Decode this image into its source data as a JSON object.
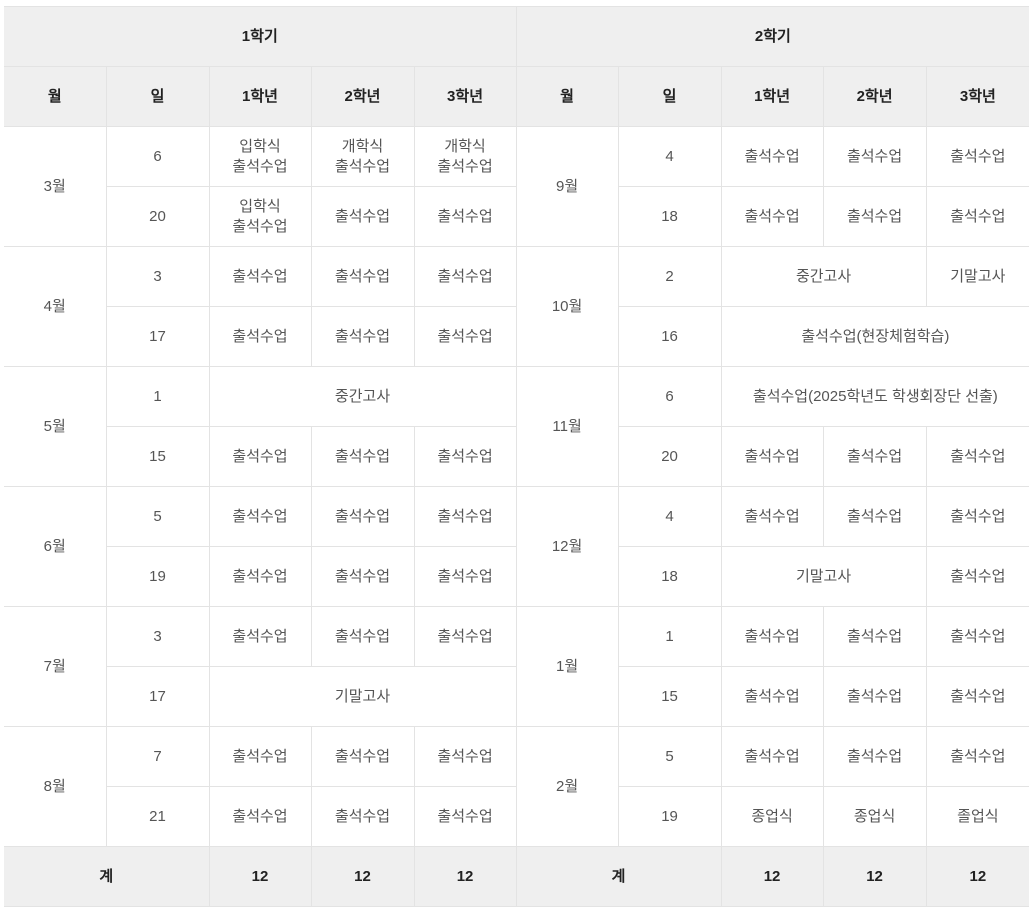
{
  "header": {
    "semester1": "1학기",
    "semester2": "2학기",
    "col_month": "월",
    "col_day": "일",
    "col_grade1": "1학년",
    "col_grade2": "2학년",
    "col_grade3": "3학년"
  },
  "sem1": {
    "months": [
      "3월",
      "4월",
      "5월",
      "6월",
      "7월",
      "8월"
    ],
    "days": [
      "6",
      "20",
      "3",
      "17",
      "1",
      "15",
      "5",
      "19",
      "3",
      "17",
      "7",
      "21"
    ],
    "cells": [
      [
        "입학식\n출석수업",
        "개학식\n출석수업",
        "개학식\n출석수업"
      ],
      [
        "입학식\n출석수업",
        "출석수업",
        "출석수업"
      ],
      [
        "출석수업",
        "출석수업",
        "출석수업"
      ],
      [
        "출석수업",
        "출석수업",
        "출석수업"
      ],
      [
        "중간고사"
      ],
      [
        "출석수업",
        "출석수업",
        "출석수업"
      ],
      [
        "출석수업",
        "출석수업",
        "출석수업"
      ],
      [
        "출석수업",
        "출석수업",
        "출석수업"
      ],
      [
        "출석수업",
        "출석수업",
        "출석수업"
      ],
      [
        "기말고사"
      ],
      [
        "출석수업",
        "출석수업",
        "출석수업"
      ],
      [
        "출석수업",
        "출석수업",
        "출석수업"
      ]
    ]
  },
  "sem2": {
    "months": [
      "9월",
      "10월",
      "11월",
      "12월",
      "1월",
      "2월"
    ],
    "days": [
      "4",
      "18",
      "2",
      "16",
      "6",
      "20",
      "4",
      "18",
      "1",
      "15",
      "5",
      "19"
    ],
    "cells": [
      [
        "출석수업",
        "출석수업",
        "출석수업"
      ],
      [
        "출석수업",
        "출석수업",
        "출석수업"
      ],
      [
        "중간고사",
        "기말고사"
      ],
      [
        "출석수업(현장체험학습)"
      ],
      [
        "출석수업(2025학년도 학생회장단 선출)"
      ],
      [
        "출석수업",
        "출석수업",
        "출석수업"
      ],
      [
        "출석수업",
        "출석수업",
        "출석수업"
      ],
      [
        "기말고사",
        "출석수업"
      ],
      [
        "출석수업",
        "출석수업",
        "출석수업"
      ],
      [
        "출석수업",
        "출석수업",
        "출석수업"
      ],
      [
        "출석수업",
        "출석수업",
        "출석수업"
      ],
      [
        "종업식",
        "종업식",
        "졸업식"
      ]
    ]
  },
  "footer": {
    "label1": "계",
    "totals1": [
      "12",
      "12",
      "12"
    ],
    "label2": "계",
    "totals2": [
      "12",
      "12",
      "12"
    ]
  }
}
